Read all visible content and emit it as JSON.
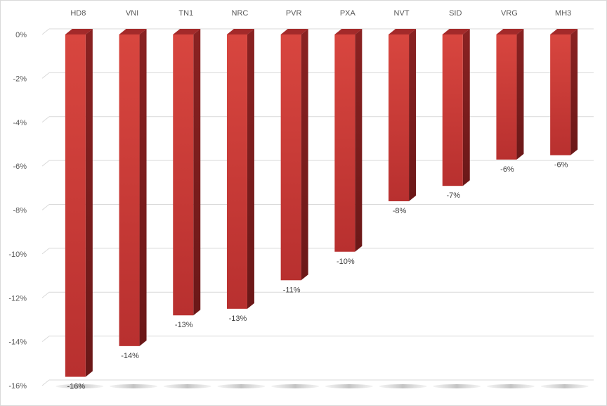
{
  "chart_data": {
    "type": "bar",
    "orientation": "vertical-3d",
    "categories": [
      "HD8",
      "VNI",
      "TN1",
      "NRC",
      "PVR",
      "PXA",
      "NVT",
      "SID",
      "VRG",
      "MH3"
    ],
    "values": [
      -15.6,
      -14.2,
      -12.8,
      -12.5,
      -11.2,
      -9.9,
      -7.6,
      -6.9,
      -5.7,
      -5.5
    ],
    "data_labels": [
      "-16%",
      "-14%",
      "-13%",
      "-13%",
      "-11%",
      "-10%",
      "-8%",
      "-7%",
      "-6%",
      "-6%"
    ],
    "yticks": [
      0,
      -2,
      -4,
      -6,
      -8,
      -10,
      -12,
      -14,
      -16
    ],
    "ytick_labels": [
      "0%",
      "-2%",
      "-4%",
      "-6%",
      "-8%",
      "-10%",
      "-12%",
      "-14%",
      "-16%"
    ],
    "ylim": [
      -16,
      0
    ],
    "category_axis_position": "top",
    "grid": true,
    "legend": "none",
    "title": "",
    "xlabel": "",
    "ylabel": "",
    "colors": {
      "bar_front": "#c93a3a",
      "bar_front_light": "#d8463f",
      "bar_side": "#7e1e1e",
      "bar_top": "#a32a2a",
      "gridline": "#d9d9d9",
      "shadow": "#bfbfbf"
    }
  }
}
